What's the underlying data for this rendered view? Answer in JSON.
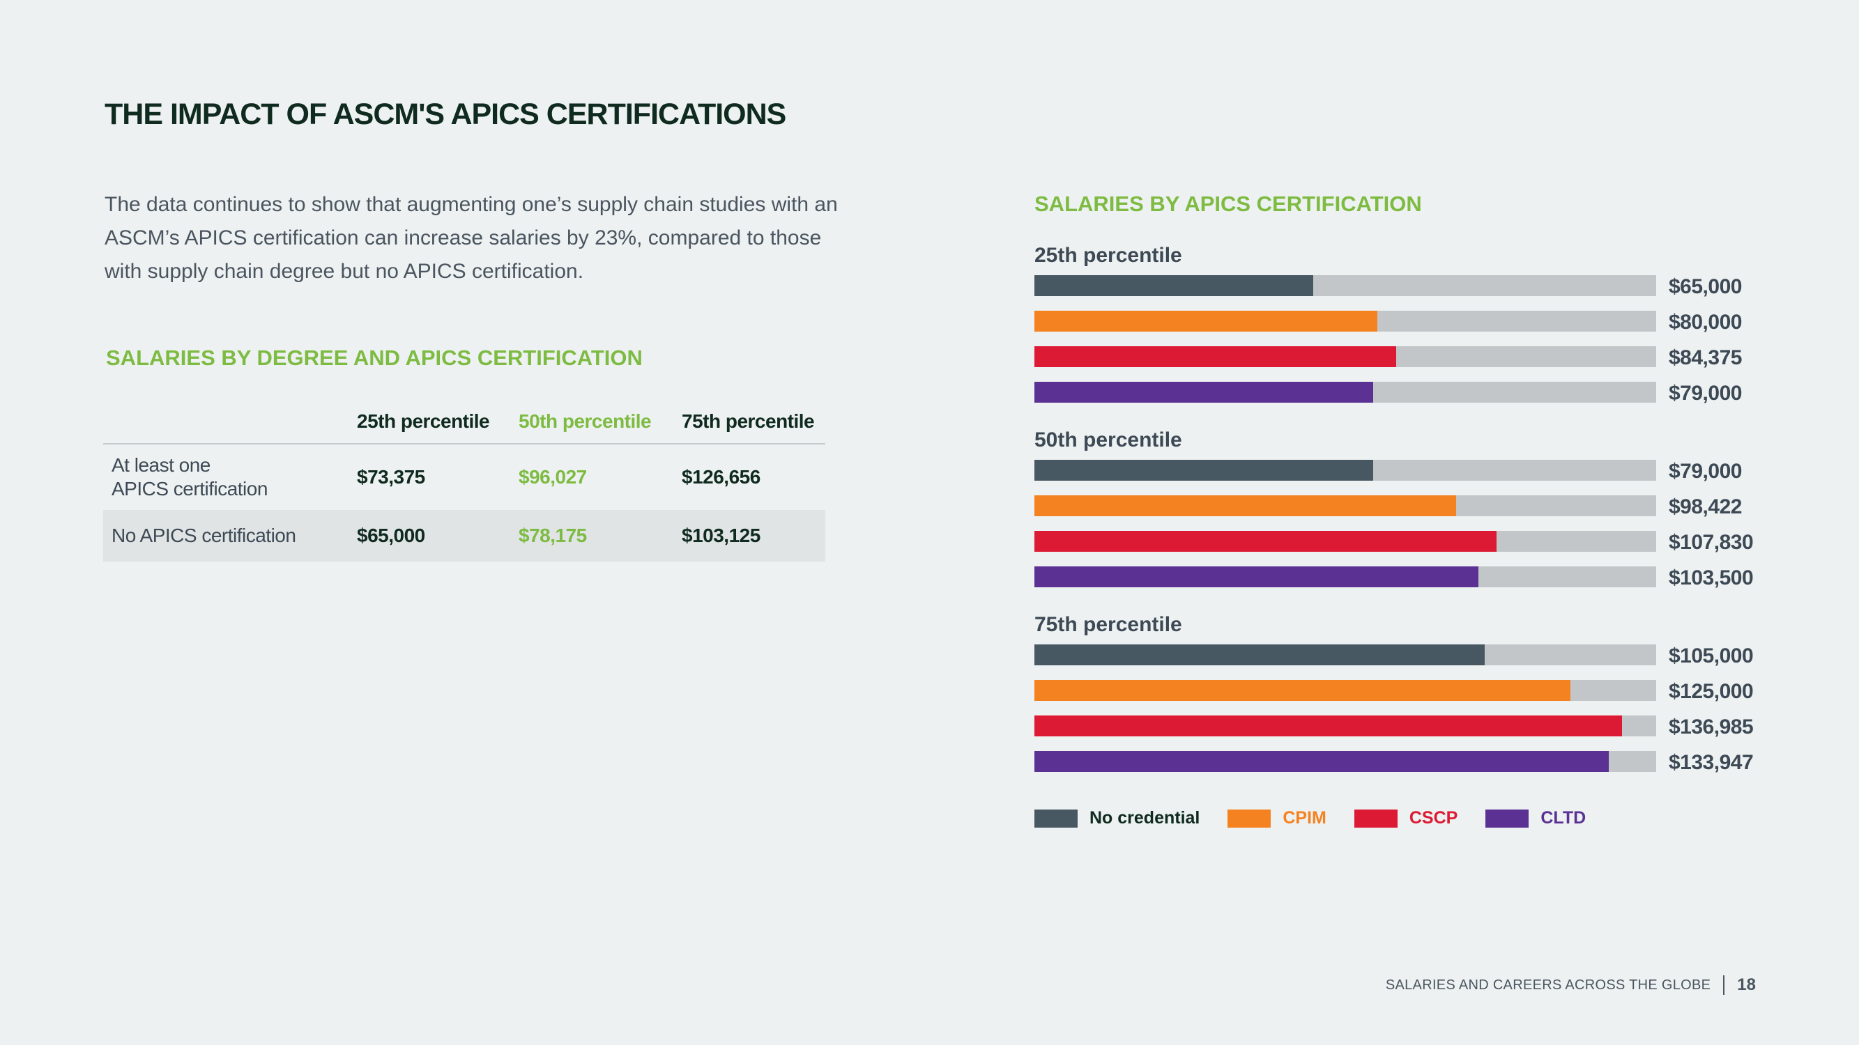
{
  "page": {
    "title": "THE IMPACT OF ASCM'S APICS CERTIFICATIONS",
    "intro": "The data continues to show that augmenting one’s supply chain studies with an ASCM’s APICS certification can increase salaries by 23%, compared to those with supply chain degree but no APICS certification.",
    "footer_text": "SALARIES AND CAREERS ACROSS THE GLOBE",
    "page_number": "18"
  },
  "table": {
    "title": "SALARIES BY DEGREE AND APICS CERTIFICATION",
    "headers": [
      "",
      "25th percentile",
      "50th percentile",
      "75th percentile"
    ],
    "rows": [
      {
        "label_line1": "At least one",
        "label_line2": "APICS certification",
        "p25": "$73,375",
        "p50": "$96,027",
        "p75": "$126,656"
      },
      {
        "label_line1": "No APICS certification",
        "label_line2": "",
        "p25": "$65,000",
        "p50": "$78,175",
        "p75": "$103,125"
      }
    ]
  },
  "chart_data": {
    "type": "bar",
    "title": "SALARIES BY APICS CERTIFICATION",
    "orientation": "horizontal",
    "xlim": [
      0,
      145000
    ],
    "groups": [
      {
        "label": "25th percentile",
        "values": [
          65000,
          80000,
          84375,
          79000
        ],
        "value_labels": [
          "$65,000",
          "$80,000",
          "$84,375",
          "$79,000"
        ]
      },
      {
        "label": "50th percentile",
        "values": [
          79000,
          98422,
          107830,
          103500
        ],
        "value_labels": [
          "$79,000",
          "$98,422",
          "$107,830",
          "$103,500"
        ]
      },
      {
        "label": "75th percentile",
        "values": [
          105000,
          125000,
          136985,
          133947
        ],
        "value_labels": [
          "$105,000",
          "$125,000",
          "$136,985",
          "$133,947"
        ]
      }
    ],
    "series": [
      {
        "name": "No credential",
        "color": "#485862"
      },
      {
        "name": "CPIM",
        "color": "#f58220"
      },
      {
        "name": "CSCP",
        "color": "#dc1a34"
      },
      {
        "name": "CLTD",
        "color": "#5b3293"
      }
    ],
    "legend": "bottom"
  }
}
